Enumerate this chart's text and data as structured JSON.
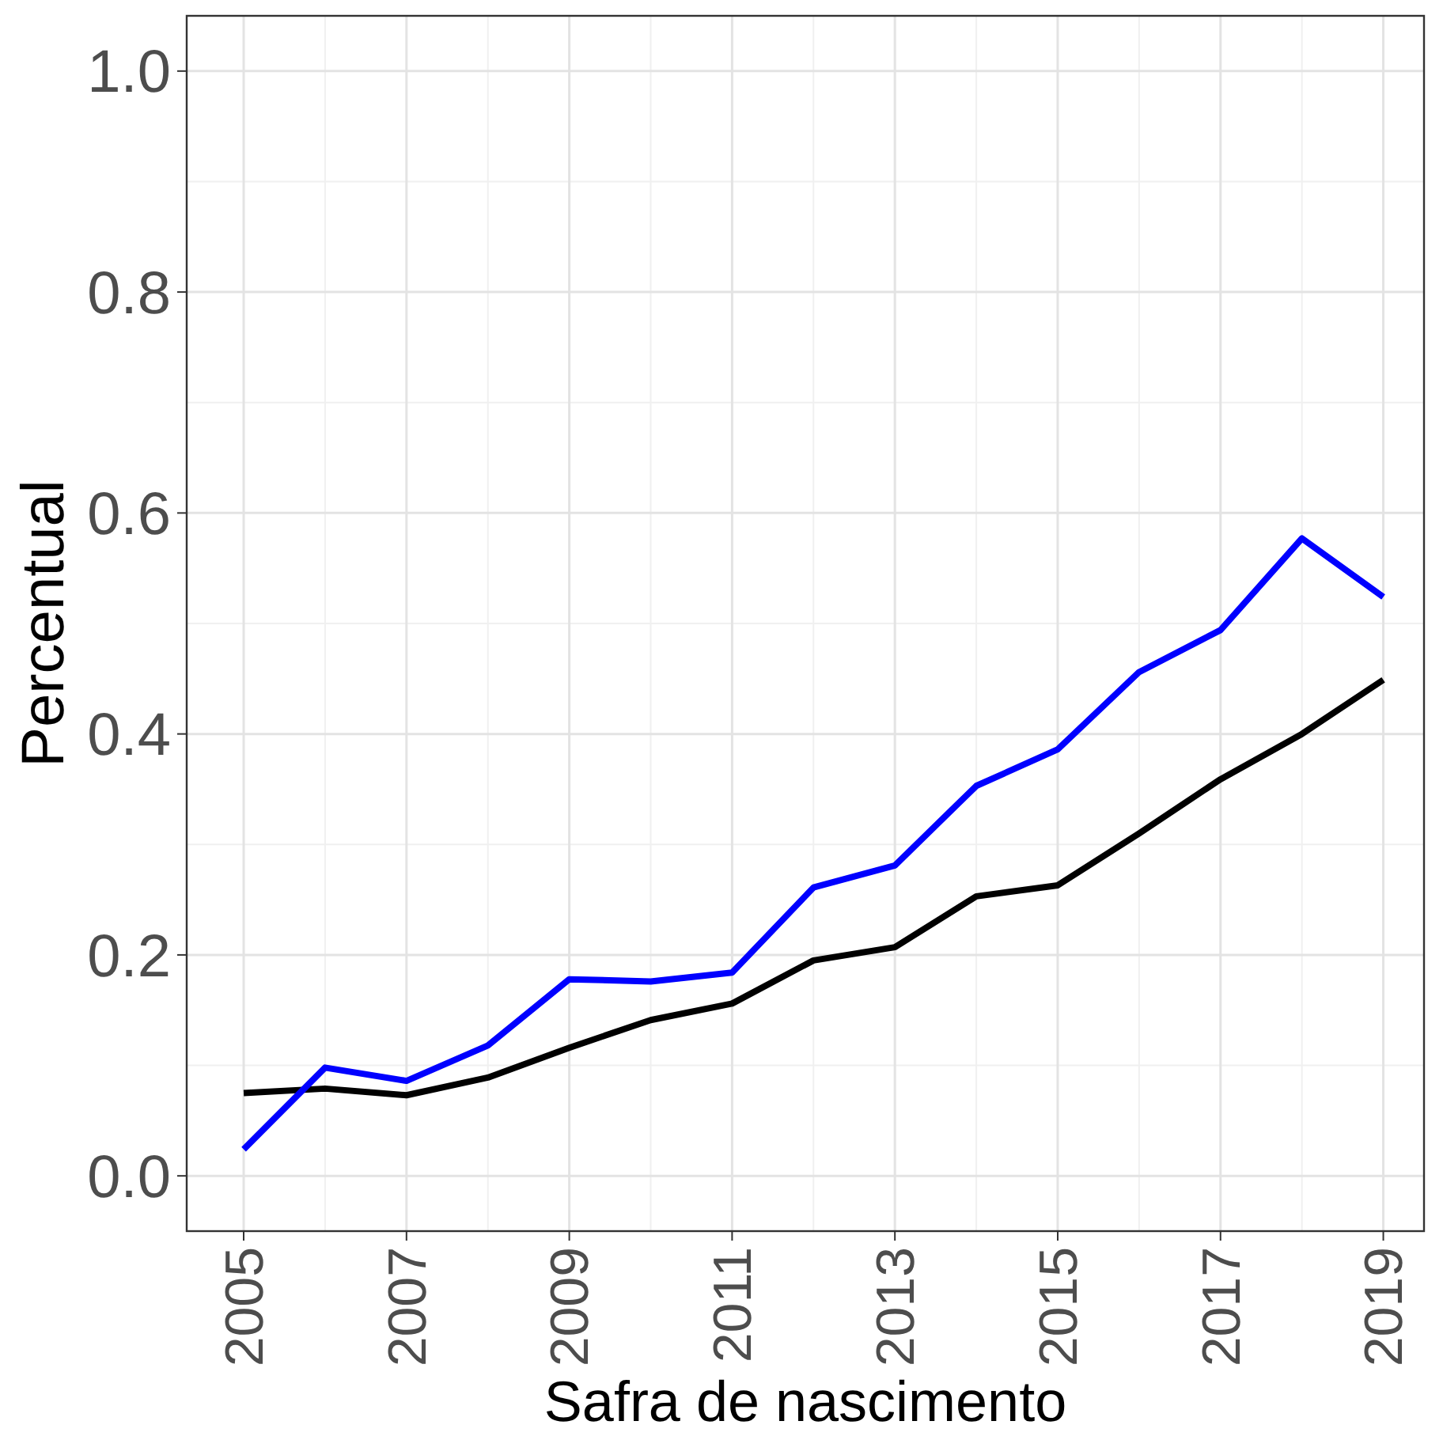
{
  "chart_data": {
    "type": "line",
    "xlabel": "Safra de nascimento",
    "ylabel": "Percentual",
    "x": [
      2005,
      2006,
      2007,
      2008,
      2009,
      2010,
      2011,
      2012,
      2013,
      2014,
      2015,
      2016,
      2017,
      2018,
      2019
    ],
    "series": [
      {
        "color": "#000000",
        "values": [
          0.075,
          0.079,
          0.073,
          0.089,
          0.116,
          0.141,
          0.156,
          0.195,
          0.207,
          0.253,
          0.263,
          0.31,
          0.359,
          0.4,
          0.449
        ]
      },
      {
        "color": "#0000ff",
        "values": [
          0.024,
          0.098,
          0.086,
          0.118,
          0.178,
          0.176,
          0.184,
          0.261,
          0.281,
          0.353,
          0.386,
          0.456,
          0.494,
          0.577,
          0.524
        ]
      }
    ],
    "xlim": [
      2004.3,
      2019.5
    ],
    "xticks": [
      2005,
      2007,
      2009,
      2011,
      2013,
      2015,
      2017,
      2019
    ],
    "ylim": [
      -0.05,
      1.05
    ],
    "yticks": [
      {
        "value": 0,
        "label": "0.0"
      },
      {
        "value": 0.2,
        "label": "0.2"
      },
      {
        "value": 0.4,
        "label": "0.4"
      },
      {
        "value": 0.6,
        "label": "0.6"
      },
      {
        "value": 0.8,
        "label": "0.8"
      },
      {
        "value": 1,
        "label": "1.0"
      }
    ],
    "grid": true,
    "line_style": "solid",
    "marker": "none"
  }
}
